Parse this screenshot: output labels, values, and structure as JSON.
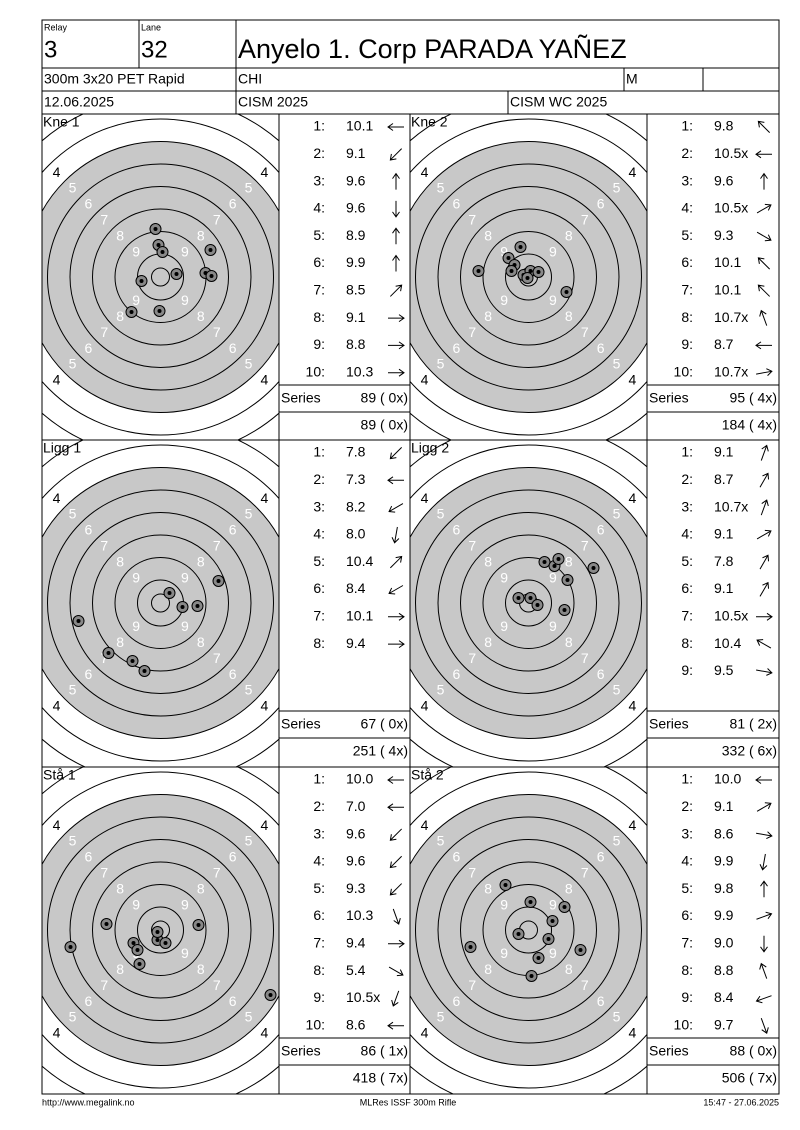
{
  "header": {
    "relay_label": "Relay",
    "relay": "3",
    "lane_label": "Lane",
    "lane": "32",
    "name": "Anyelo 1. Corp PARADA YAÑEZ",
    "event": "300m 3x20 PET Rapid",
    "nation": "CHI",
    "gender": "M",
    "date": "12.06.2025",
    "competition": "CISM 2025",
    "match": "CISM WC 2025"
  },
  "ring_labels": [
    "9",
    "8",
    "7",
    "6",
    "5",
    "4"
  ],
  "panels": [
    {
      "name": "Kne 1",
      "shots": [
        [
          "1:",
          "10.1"
        ],
        [
          "2:",
          "9.1"
        ],
        [
          "3:",
          "9.6"
        ],
        [
          "4:",
          "9.6"
        ],
        [
          "5:",
          "8.9"
        ],
        [
          "6:",
          "9.9"
        ],
        [
          "7:",
          "8.5"
        ],
        [
          "8:",
          "9.1"
        ],
        [
          "9:",
          "8.8"
        ],
        [
          "10:",
          "10.3"
        ]
      ],
      "series_label": "Series",
      "series": "89 ( 0x)",
      "total": "89 ( 0x)"
    },
    {
      "name": "Kne 2",
      "shots": [
        [
          "1:",
          "9.8"
        ],
        [
          "2:",
          "10.5x"
        ],
        [
          "3:",
          "9.6"
        ],
        [
          "4:",
          "10.5x"
        ],
        [
          "5:",
          "9.3"
        ],
        [
          "6:",
          "10.1"
        ],
        [
          "7:",
          "10.1"
        ],
        [
          "8:",
          "10.7x"
        ],
        [
          "9:",
          "8.7"
        ],
        [
          "10:",
          "10.7x"
        ]
      ],
      "series_label": "Series",
      "series": "95 ( 4x)",
      "total": "184 ( 4x)"
    },
    {
      "name": "Ligg 1",
      "shots": [
        [
          "1:",
          "7.8"
        ],
        [
          "2:",
          "7.3"
        ],
        [
          "3:",
          "8.2"
        ],
        [
          "4:",
          "8.0"
        ],
        [
          "5:",
          "10.4"
        ],
        [
          "6:",
          "8.4"
        ],
        [
          "7:",
          "10.1"
        ],
        [
          "8:",
          "9.4"
        ]
      ],
      "series_label": "Series",
      "series": "67 ( 0x)",
      "total": "251 ( 4x)"
    },
    {
      "name": "Ligg 2",
      "shots": [
        [
          "1:",
          "9.1"
        ],
        [
          "2:",
          "8.7"
        ],
        [
          "3:",
          "10.7x"
        ],
        [
          "4:",
          "9.1"
        ],
        [
          "5:",
          "7.8"
        ],
        [
          "6:",
          "9.1"
        ],
        [
          "7:",
          "10.5x"
        ],
        [
          "8:",
          "10.4"
        ],
        [
          "9:",
          "9.5"
        ]
      ],
      "series_label": "Series",
      "series": "81 ( 2x)",
      "total": "332 ( 6x)"
    },
    {
      "name": "Stå 1",
      "shots": [
        [
          "1:",
          "10.0"
        ],
        [
          "2:",
          "7.0"
        ],
        [
          "3:",
          "9.6"
        ],
        [
          "4:",
          "9.6"
        ],
        [
          "5:",
          "9.3"
        ],
        [
          "6:",
          "10.3"
        ],
        [
          "7:",
          "9.4"
        ],
        [
          "8:",
          "5.4"
        ],
        [
          "9:",
          "10.5x"
        ],
        [
          "10:",
          "8.6"
        ]
      ],
      "series_label": "Series",
      "series": "86 ( 1x)",
      "total": "418 ( 7x)"
    },
    {
      "name": "Stå 2",
      "shots": [
        [
          "1:",
          "10.0"
        ],
        [
          "2:",
          "9.1"
        ],
        [
          "3:",
          "8.6"
        ],
        [
          "4:",
          "9.9"
        ],
        [
          "5:",
          "9.8"
        ],
        [
          "6:",
          "9.9"
        ],
        [
          "7:",
          "9.0"
        ],
        [
          "8:",
          "8.8"
        ],
        [
          "9:",
          "8.4"
        ],
        [
          "10:",
          "9.7"
        ]
      ],
      "series_label": "Series",
      "series": "88 ( 0x)",
      "total": "506 ( 7x)"
    }
  ],
  "footer": {
    "left": "http://www.megalink.no",
    "center": "MLRes ISSF 300m Rifle",
    "right": "15:47 - 27.06.2025"
  }
}
